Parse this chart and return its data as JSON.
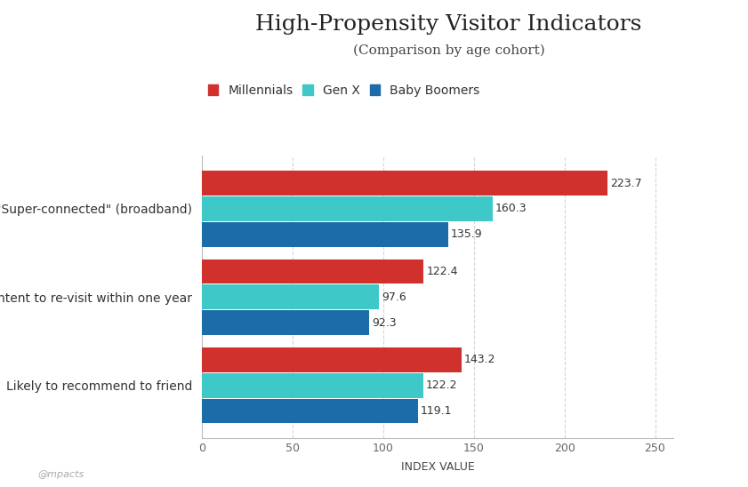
{
  "title": "High-Propensity Visitor Indicators",
  "subtitle": "(Comparison by age cohort)",
  "xlabel": "INDEX VALUE",
  "categories": [
    "\"Super-connected\" (broadband)",
    "Intent to re-visit within one year",
    "Likely to recommend to friend"
  ],
  "series": [
    {
      "name": "Millennials",
      "color": "#d0312d",
      "values": [
        223.7,
        122.4,
        143.2
      ]
    },
    {
      "name": "Gen X",
      "color": "#3ec8c8",
      "values": [
        160.3,
        97.6,
        122.2
      ]
    },
    {
      "name": "Baby Boomers",
      "color": "#1b6ca8",
      "values": [
        135.9,
        92.3,
        119.1
      ]
    }
  ],
  "xlim": [
    0,
    260
  ],
  "xticks": [
    0,
    50,
    100,
    150,
    200,
    250
  ],
  "background_color": "#ffffff",
  "grid_color": "#cccccc",
  "bar_height": 0.28,
  "watermark": "@mpacts",
  "title_fontsize": 18,
  "subtitle_fontsize": 11,
  "label_fontsize": 10,
  "value_fontsize": 9,
  "legend_fontsize": 10,
  "xlabel_fontsize": 9,
  "tick_fontsize": 9
}
